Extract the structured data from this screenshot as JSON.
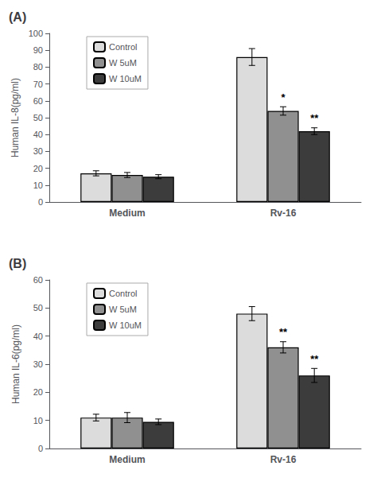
{
  "chart_data": [
    {
      "type": "bar",
      "title": "(A)",
      "ylabel": "Human IL-8(pg/ml)",
      "categories": [
        "Medium",
        "Rv-16"
      ],
      "series": [
        {
          "name": "Control",
          "color": "#dcdcdc",
          "values": [
            17,
            86
          ],
          "errors": [
            1.5,
            5.0
          ]
        },
        {
          "name": "W 5uM",
          "color": "#909090",
          "values": [
            16,
            54
          ],
          "errors": [
            1.5,
            2.5
          ]
        },
        {
          "name": "W 10uM",
          "color": "#3c3c3c",
          "values": [
            15,
            42
          ],
          "errors": [
            1.2,
            2.0
          ]
        }
      ],
      "annotations": [
        {
          "category": "Rv-16",
          "series": "W 5uM",
          "text": "*"
        },
        {
          "category": "Rv-16",
          "series": "W 10uM",
          "text": "**"
        }
      ],
      "ylim": [
        0,
        100
      ],
      "yticks": [
        0,
        10,
        20,
        30,
        40,
        50,
        60,
        70,
        80,
        90,
        100
      ],
      "grid": false,
      "legend": "upper left"
    },
    {
      "type": "bar",
      "title": "(B)",
      "ylabel": "Human IL-6(pg/ml)",
      "categories": [
        "Medium",
        "Rv-16"
      ],
      "series": [
        {
          "name": "Control",
          "color": "#dcdcdc",
          "values": [
            11,
            48
          ],
          "errors": [
            1.2,
            2.5
          ]
        },
        {
          "name": "W 5uM",
          "color": "#909090",
          "values": [
            11,
            36
          ],
          "errors": [
            1.8,
            2.0
          ]
        },
        {
          "name": "W 10uM",
          "color": "#3c3c3c",
          "values": [
            9.5,
            26
          ],
          "errors": [
            1.0,
            2.5
          ]
        }
      ],
      "annotations": [
        {
          "category": "Rv-16",
          "series": "W 5uM",
          "text": "**"
        },
        {
          "category": "Rv-16",
          "series": "W 10uM",
          "text": "**"
        }
      ],
      "ylim": [
        0,
        60
      ],
      "yticks": [
        0,
        10,
        20,
        30,
        40,
        50,
        60
      ],
      "grid": false,
      "legend": "upper left"
    }
  ]
}
